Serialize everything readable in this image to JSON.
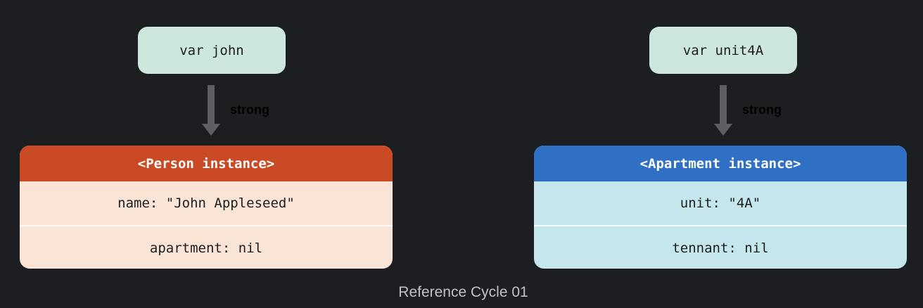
{
  "variables": {
    "left": "var john",
    "right": "var unit4A"
  },
  "references": {
    "left_label": "strong",
    "right_label": "strong"
  },
  "person": {
    "title": "<Person instance>",
    "properties": [
      "name: \"John Appleseed\"",
      "apartment: nil"
    ]
  },
  "apartment": {
    "title": "<Apartment instance>",
    "properties": [
      "unit: \"4A\"",
      "tennant: nil"
    ]
  },
  "caption": "Reference Cycle 01",
  "colors": {
    "background": "#1c1e21",
    "variable_box": "#cde7df",
    "person_header": "#c94a24",
    "person_body": "#f9e4d5",
    "apartment_header": "#2f6fc4",
    "apartment_body": "#c4e6ec",
    "arrow": "#5d5f62"
  }
}
